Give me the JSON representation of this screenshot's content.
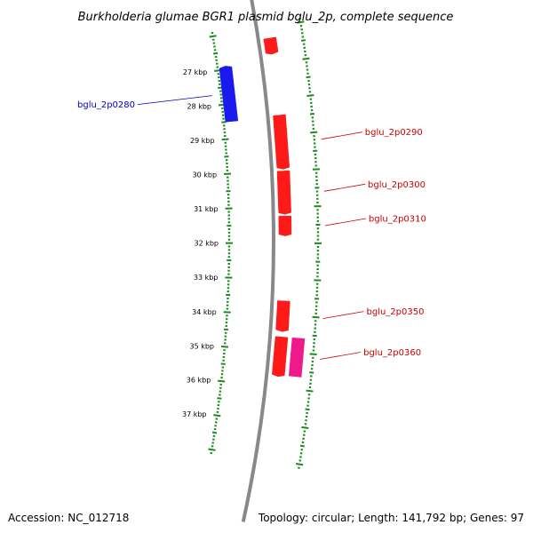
{
  "title": "Burkholderia glumae BGR1 plasmid bglu_2p, complete sequence",
  "footer": {
    "accession": "Accession: NC_012718",
    "summary": "Topology: circular; Length: 141,792 bp; Genes: 97"
  },
  "colors": {
    "backbone": "#888888",
    "ticks": "#1e8a1e",
    "forward_gene": "#ff1a1a",
    "reverse_gene": "#1a1aee",
    "rna_gene": "#ee1a8a",
    "forward_label": "#cc0000",
    "reverse_label": "#0000cc"
  },
  "kbp_labels": [
    "27 kbp",
    "28 kbp",
    "29 kbp",
    "30 kbp",
    "31 kbp",
    "32 kbp",
    "33 kbp",
    "34 kbp",
    "35 kbp",
    "36 kbp",
    "37 kbp"
  ],
  "genes": [
    {
      "label": "",
      "strand": "forward",
      "start_kbp": 26.3,
      "end_kbp": 26.75
    },
    {
      "label": "bglu_2p0280",
      "strand": "reverse",
      "start_kbp": 26.9,
      "end_kbp": 28.5
    },
    {
      "label": "bglu_2p0290",
      "strand": "forward",
      "start_kbp": 28.45,
      "end_kbp": 29.95
    },
    {
      "label": "bglu_2p0300",
      "strand": "forward",
      "start_kbp": 30.0,
      "end_kbp": 31.2
    },
    {
      "label": "bglu_2p0310",
      "strand": "forward",
      "start_kbp": 31.25,
      "end_kbp": 31.8
    },
    {
      "label": "bglu_2p0350",
      "strand": "forward",
      "start_kbp": 33.6,
      "end_kbp": 34.45
    },
    {
      "label": "",
      "strand": "forward",
      "start_kbp": 34.6,
      "end_kbp": 35.7
    },
    {
      "label": "bglu_2p0360",
      "strand": "rna",
      "start_kbp": 34.6,
      "end_kbp": 35.65
    }
  ]
}
